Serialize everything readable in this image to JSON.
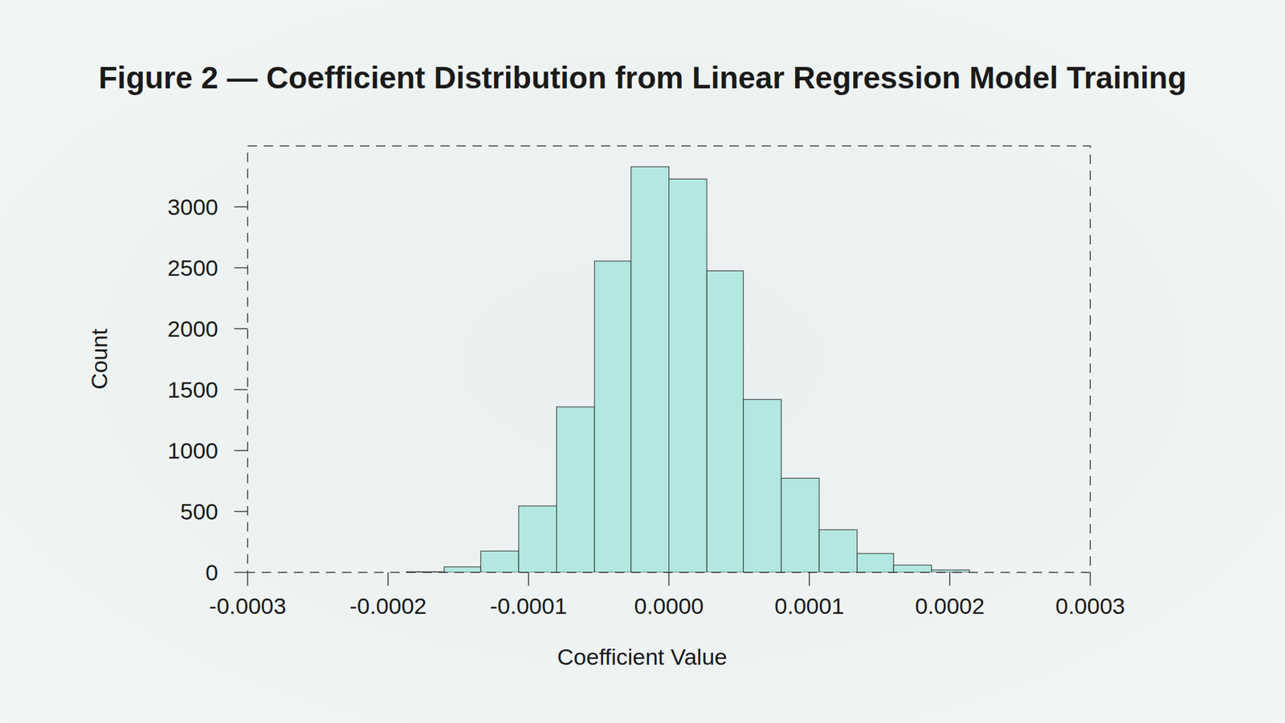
{
  "chart_data": {
    "type": "histogram",
    "title": "Figure 2 — Coefficient Distribution from Linear Regression Model Training",
    "x_label": "Coefficient Value",
    "y_label": "Count",
    "bins": [
      -0.000187,
      -0.00016,
      -0.000134,
      -0.000107,
      -8e-05,
      -5.3e-05,
      -2.7e-05,
      0,
      2.7e-05,
      5.3e-05,
      8e-05,
      0.000107,
      0.000134,
      0.00016,
      0.000187,
      0.000214
    ],
    "values": [
      5,
      45,
      175,
      545,
      1358,
      2555,
      3329,
      3228,
      2475,
      1419,
      773,
      350,
      155,
      60,
      20
    ],
    "color": "#b2e8e1",
    "xlim": [
      -0.0003,
      0.0003
    ],
    "xticks": [
      -0.0003,
      -0.0002,
      -0.0001,
      {
        "value": 0,
        "label": "0.0000"
      },
      0.0001,
      0.0002,
      0.0003
    ],
    "ylim": [
      0,
      3500
    ],
    "yticks": [
      0,
      500,
      1000,
      1500,
      2000,
      2500,
      3000
    ],
    "grid": false
  }
}
